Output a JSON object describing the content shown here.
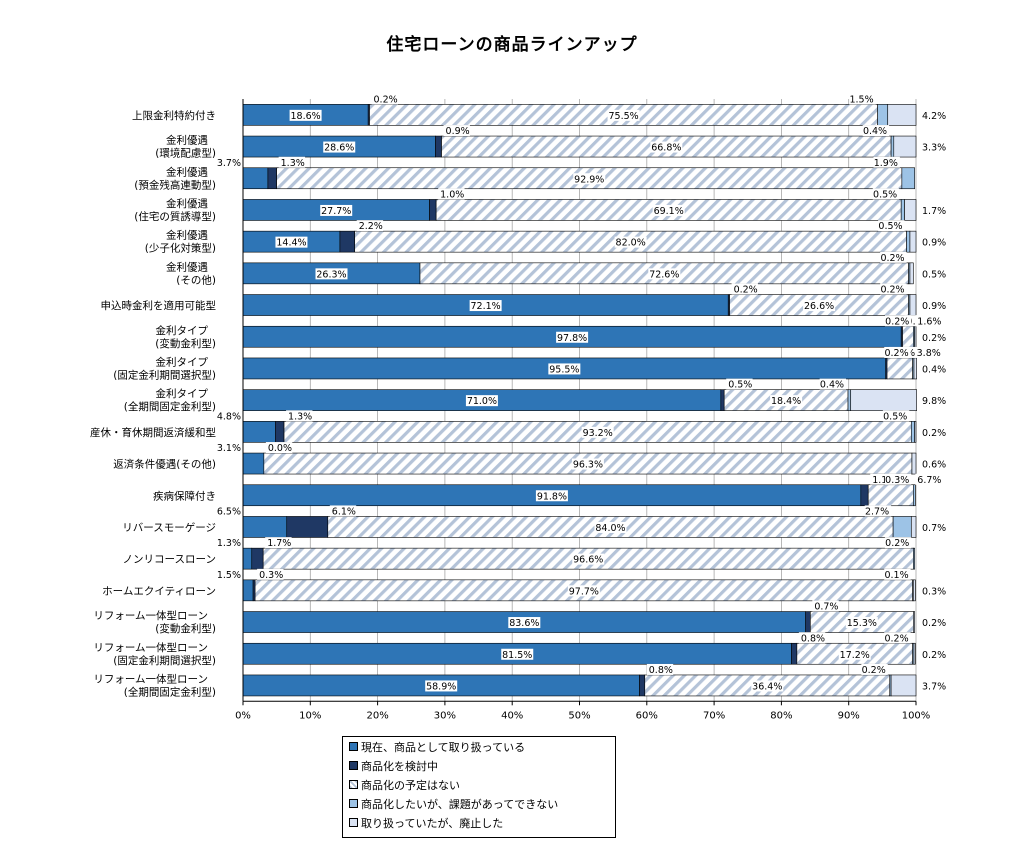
{
  "colors": {
    "current": "#2e75b6",
    "considering": "#1f3864",
    "no_plan": "hatch",
    "want_but_issues": "#9dc3e6",
    "discontinued": "#dae3f3"
  },
  "chart_data": {
    "type": "bar",
    "orientation": "horizontal",
    "stacked": true,
    "title": "住宅ローンの商品ラインアップ",
    "xlim": [
      0,
      100
    ],
    "x_ticks": [
      "0%",
      "10%",
      "20%",
      "30%",
      "40%",
      "50%",
      "60%",
      "70%",
      "80%",
      "90%",
      "100%"
    ],
    "grid": true,
    "legend_position": "bottom",
    "categories": [
      [
        "上限金利特約付き"
      ],
      [
        "金利優遇",
        "(環境配慮型)"
      ],
      [
        "金利優遇",
        "(預金残高連動型)"
      ],
      [
        "金利優遇",
        "(住宅の質誘導型)"
      ],
      [
        "金利優遇",
        "(少子化対策型)"
      ],
      [
        "金利優遇",
        "(その他)"
      ],
      [
        "申込時金利を適用可能型"
      ],
      [
        "金利タイプ",
        "(変動金利型)"
      ],
      [
        "金利タイプ",
        "(固定金利期間選択型)"
      ],
      [
        "金利タイプ",
        "(全期間固定金利型)"
      ],
      [
        "産休・育休期間返済緩和型"
      ],
      [
        "返済条件優遇(その他)"
      ],
      [
        "疾病保障付き"
      ],
      [
        "リバースモーゲージ"
      ],
      [
        "ノンリコースローン"
      ],
      [
        "ホームエクイティローン"
      ],
      [
        "リフォーム一体型ローン",
        "(変動金利型)"
      ],
      [
        "リフォーム一体型ローン",
        "(固定金利期間選択型)"
      ],
      [
        "リフォーム一体型ローン",
        "(全期間固定金利型)"
      ]
    ],
    "series": [
      {
        "name": "現在、商品として取り扱っている",
        "key": "current",
        "values": [
          18.6,
          28.6,
          3.7,
          27.7,
          14.4,
          26.3,
          72.1,
          97.8,
          95.5,
          71.0,
          4.8,
          3.1,
          91.8,
          6.5,
          1.3,
          1.5,
          83.6,
          81.5,
          58.9
        ]
      },
      {
        "name": "商品化を検討中",
        "key": "considering",
        "values": [
          0.2,
          0.9,
          1.3,
          1.0,
          2.2,
          0.0,
          0.2,
          0.2,
          0.2,
          0.5,
          1.3,
          0.0,
          1.1,
          6.1,
          1.7,
          0.3,
          0.7,
          0.8,
          0.8
        ]
      },
      {
        "name": "商品化の予定はない",
        "key": "no_plan",
        "values": [
          75.5,
          66.8,
          92.9,
          69.1,
          82.0,
          72.6,
          26.6,
          1.6,
          3.8,
          18.4,
          93.2,
          96.3,
          6.7,
          84.0,
          96.6,
          97.7,
          15.3,
          17.2,
          36.4
        ]
      },
      {
        "name": "商品化したいが、課題があってできない",
        "key": "want_but_issues",
        "values": [
          1.5,
          0.4,
          1.9,
          0.5,
          0.5,
          0.2,
          0.2,
          0.2,
          0.2,
          0.4,
          0.5,
          0.0,
          0.3,
          2.7,
          0.2,
          0.1,
          0.0,
          0.2,
          0.2
        ]
      },
      {
        "name": "取り扱っていたが、廃止した",
        "key": "discontinued",
        "values": [
          4.2,
          3.3,
          0.0,
          1.7,
          0.9,
          0.5,
          0.9,
          0.2,
          0.4,
          9.8,
          0.2,
          0.6,
          0.0,
          0.7,
          0.0,
          0.3,
          0.2,
          0.2,
          3.7
        ]
      }
    ],
    "value_labels": [
      [
        "18.6%",
        "0.2%",
        "75.5%",
        "1.5%",
        "4.2%"
      ],
      [
        "28.6%",
        "0.9%",
        "66.8%",
        "0.4%",
        "3.3%"
      ],
      [
        "3.7%",
        "1.3%",
        "92.9%",
        "1.9%",
        ""
      ],
      [
        "27.7%",
        "1.0%",
        "69.1%",
        "0.5%",
        "1.7%"
      ],
      [
        "14.4%",
        "2.2%",
        "82.0%",
        "0.5%",
        "0.9%"
      ],
      [
        "26.3%",
        "",
        "72.6%",
        "0.2%",
        "0.5%"
      ],
      [
        "72.1%",
        "0.2%",
        "26.6%",
        "0.2%",
        "0.9%"
      ],
      [
        "97.8%",
        "0.2%",
        "1.6%",
        "0.2%",
        "0.2%"
      ],
      [
        "95.5%",
        "0.2%",
        "3.8%",
        "0.2%",
        "0.4%"
      ],
      [
        "71.0%",
        "0.5%",
        "18.4%",
        "0.4%",
        "9.8%"
      ],
      [
        "4.8%",
        "1.3%",
        "93.2%",
        "0.5%",
        "0.2%"
      ],
      [
        "3.1%",
        "0.0%",
        "96.3%",
        "",
        "0.6%"
      ],
      [
        "91.8%",
        "1.1%",
        "6.7%",
        "0.3%",
        ""
      ],
      [
        "6.5%",
        "6.1%",
        "84.0%",
        "2.7%",
        "0.7%"
      ],
      [
        "1.3%",
        "1.7%",
        "96.6%",
        "0.2%",
        ""
      ],
      [
        "1.5%",
        "0.3%",
        "97.7%",
        "0.1%",
        "0.3%"
      ],
      [
        "83.6%",
        "0.7%",
        "15.3%",
        "",
        "0.2%"
      ],
      [
        "81.5%",
        "0.8%",
        "17.2%",
        "0.2%",
        "0.2%"
      ],
      [
        "58.9%",
        "0.8%",
        "36.4%",
        "0.2%",
        "3.7%"
      ]
    ]
  }
}
